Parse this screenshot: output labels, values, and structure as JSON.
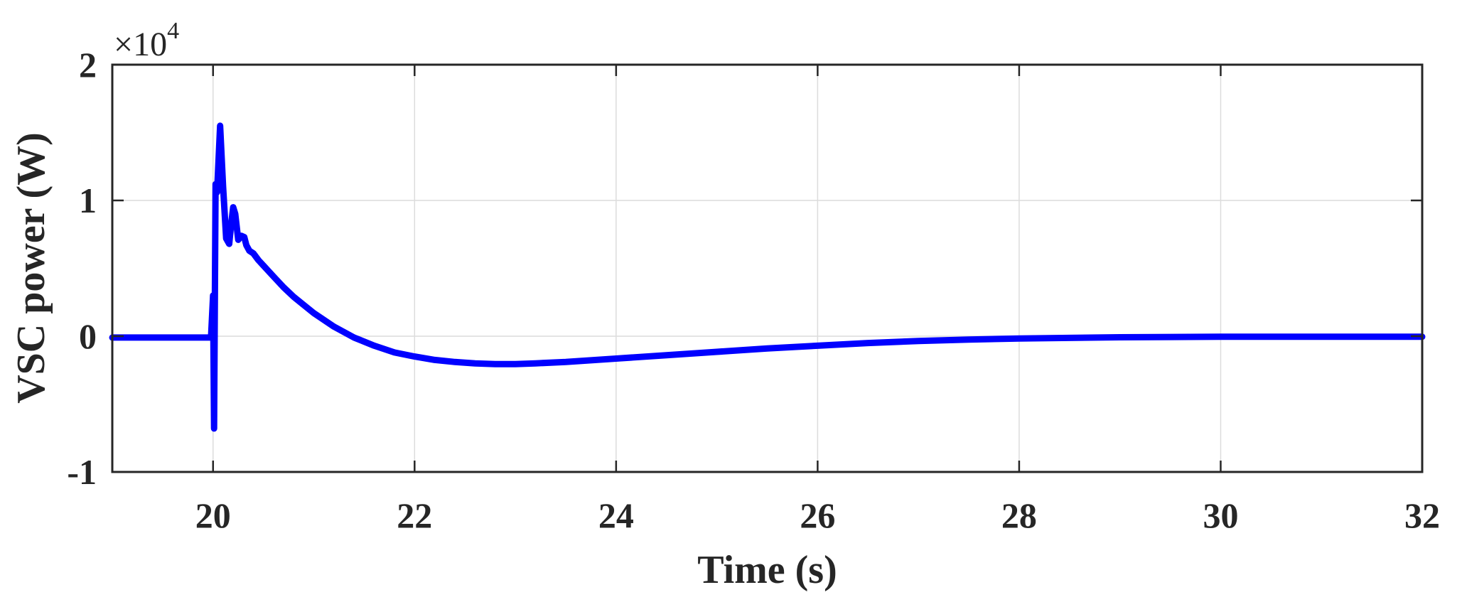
{
  "chart_data": {
    "type": "line",
    "title": "",
    "xlabel": "Time (s)",
    "ylabel": "VSC power (W)",
    "y_exponent_base": "×10",
    "y_exponent_power": "4",
    "xlim": [
      19,
      32
    ],
    "ylim": [
      -1,
      2
    ],
    "xticks": [
      20,
      22,
      24,
      26,
      28,
      30,
      32
    ],
    "yticks": [
      -1,
      0,
      1,
      2
    ],
    "grid": true,
    "legend": "none",
    "series": [
      {
        "color": "#0000ff",
        "x": [
          19.0,
          19.5,
          19.98,
          20.0,
          20.01,
          20.025,
          20.04,
          20.07,
          20.1,
          20.13,
          20.16,
          20.18,
          20.2,
          20.22,
          20.25,
          20.28,
          20.31,
          20.33,
          20.36,
          20.4,
          20.45,
          20.5,
          20.6,
          20.7,
          20.8,
          20.9,
          21.0,
          21.2,
          21.4,
          21.6,
          21.8,
          22.0,
          22.2,
          22.4,
          22.6,
          22.8,
          23.0,
          23.2,
          23.5,
          24.0,
          24.5,
          25.0,
          25.5,
          26.0,
          26.5,
          27.0,
          27.5,
          28.0,
          29.0,
          30.0,
          31.0,
          32.0
        ],
        "y": [
          -0.01,
          -0.01,
          -0.01,
          0.3,
          -0.68,
          1.12,
          1.06,
          1.55,
          1.1,
          0.72,
          0.68,
          0.83,
          0.95,
          0.9,
          0.71,
          0.74,
          0.73,
          0.67,
          0.63,
          0.61,
          0.56,
          0.52,
          0.44,
          0.36,
          0.29,
          0.23,
          0.17,
          0.07,
          -0.01,
          -0.07,
          -0.12,
          -0.15,
          -0.175,
          -0.19,
          -0.2,
          -0.205,
          -0.205,
          -0.2,
          -0.19,
          -0.165,
          -0.14,
          -0.115,
          -0.09,
          -0.07,
          -0.05,
          -0.035,
          -0.025,
          -0.017,
          -0.008,
          -0.004,
          -0.004,
          -0.004
        ]
      }
    ]
  }
}
